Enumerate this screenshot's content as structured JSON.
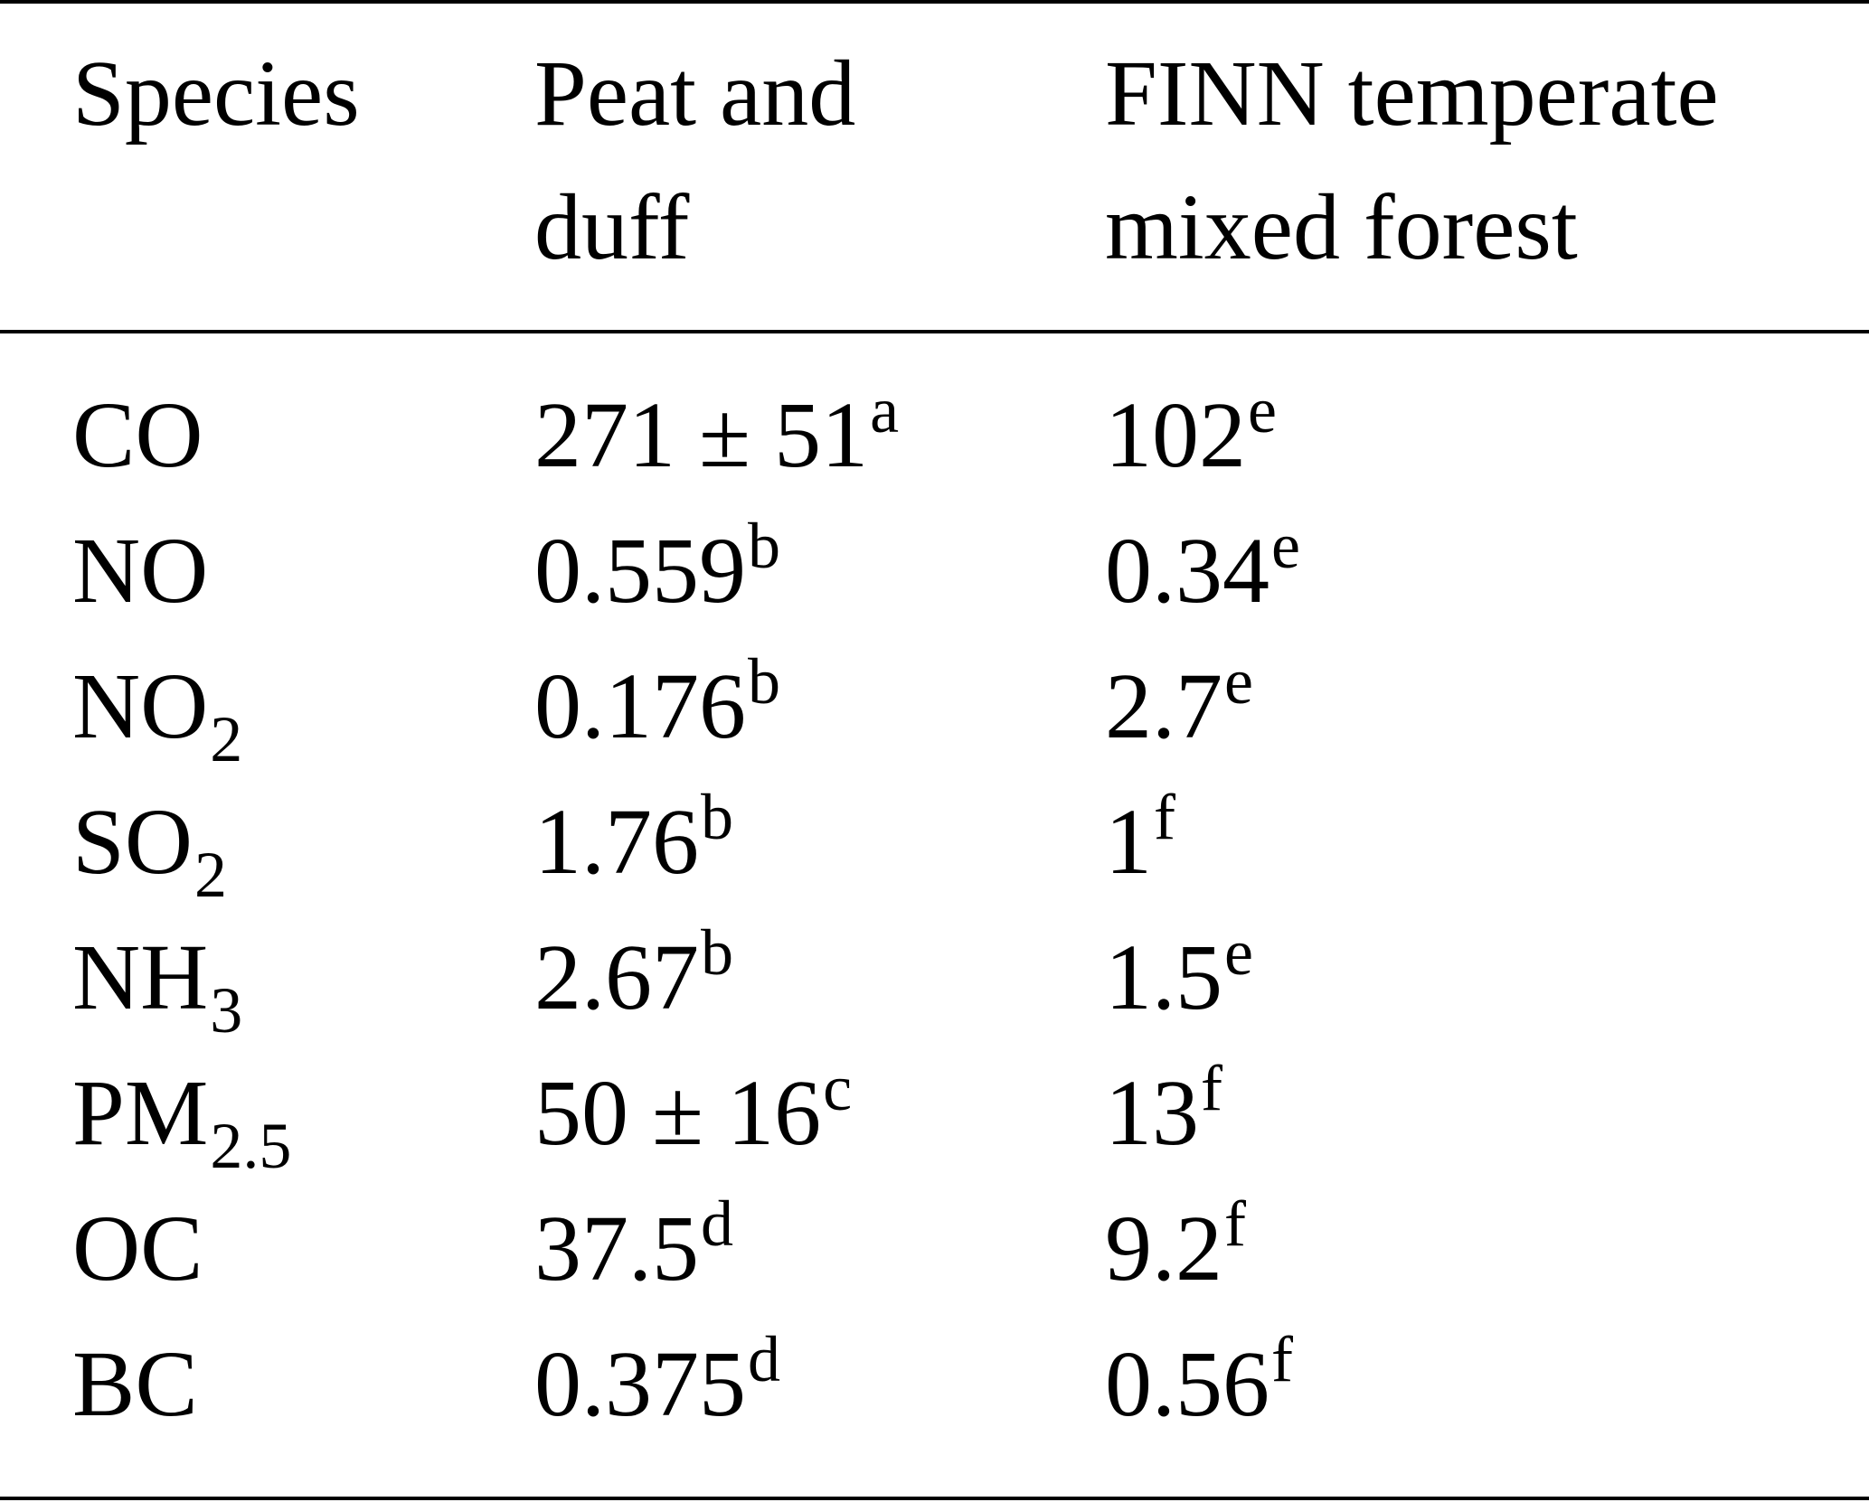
{
  "table": {
    "headers": [
      {
        "line1": "Species",
        "line2": ""
      },
      {
        "line1": "Peat and",
        "line2": "duff"
      },
      {
        "line1": "FINN temperate",
        "line2": "mixed forest"
      }
    ],
    "rows": [
      {
        "species": "CO",
        "species_sub": "",
        "peat": "271 ± 51",
        "peat_sup": "a",
        "finn": "102",
        "finn_sup": "e"
      },
      {
        "species": "NO",
        "species_sub": "",
        "peat": "0.559",
        "peat_sup": "b",
        "finn": "0.34",
        "finn_sup": "e"
      },
      {
        "species": "NO",
        "species_sub": "2",
        "peat": "0.176",
        "peat_sup": "b",
        "finn": "2.7",
        "finn_sup": "e"
      },
      {
        "species": "SO",
        "species_sub": "2",
        "peat": "1.76",
        "peat_sup": "b",
        "finn": "1",
        "finn_sup": "f"
      },
      {
        "species": "NH",
        "species_sub": "3",
        "peat": "2.67",
        "peat_sup": "b",
        "finn": "1.5",
        "finn_sup": "e"
      },
      {
        "species": "PM",
        "species_sub": "2.5",
        "peat": "50 ± 16",
        "peat_sup": "c",
        "finn": "13",
        "finn_sup": "f"
      },
      {
        "species": "OC",
        "species_sub": "",
        "peat": "37.5",
        "peat_sup": "d",
        "finn": "9.2",
        "finn_sup": "f"
      },
      {
        "species": "BC",
        "species_sub": "",
        "peat": "0.375",
        "peat_sup": "d",
        "finn": "0.56",
        "finn_sup": "f"
      }
    ]
  }
}
